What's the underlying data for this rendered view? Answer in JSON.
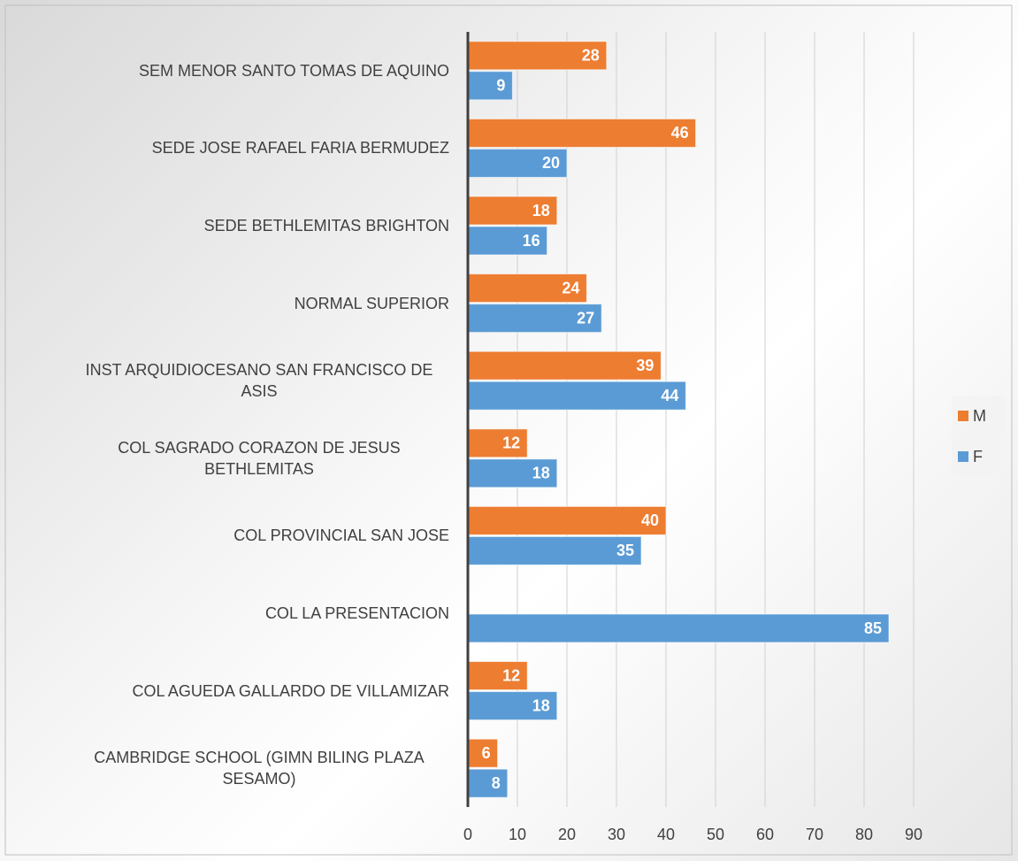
{
  "chart_data": {
    "type": "bar",
    "orientation": "horizontal",
    "categories": [
      "SEM MENOR SANTO TOMAS DE AQUINO",
      "SEDE JOSE RAFAEL FARIA BERMUDEZ",
      "SEDE BETHLEMITAS BRIGHTON",
      "NORMAL SUPERIOR",
      "INST ARQUIDIOCESANO SAN FRANCISCO DE ASIS",
      "COL SAGRADO CORAZON DE JESUS BETHLEMITAS",
      "COL PROVINCIAL SAN JOSE",
      "COL LA PRESENTACION",
      "COL AGUEDA GALLARDO DE VILLAMIZAR",
      "CAMBRIDGE SCHOOL (GIMN BILING PLAZA SESAMO)"
    ],
    "series": [
      {
        "name": "M",
        "color": "#ed7d31",
        "values": [
          28,
          46,
          18,
          24,
          39,
          12,
          40,
          null,
          12,
          6
        ]
      },
      {
        "name": "F",
        "color": "#5b9bd5",
        "values": [
          9,
          20,
          16,
          27,
          44,
          18,
          35,
          85,
          18,
          8
        ]
      }
    ],
    "xlim": [
      0,
      90
    ],
    "xticks": [
      0,
      10,
      20,
      30,
      40,
      50,
      60,
      70,
      80,
      90
    ],
    "grid": true,
    "legend": "right"
  }
}
